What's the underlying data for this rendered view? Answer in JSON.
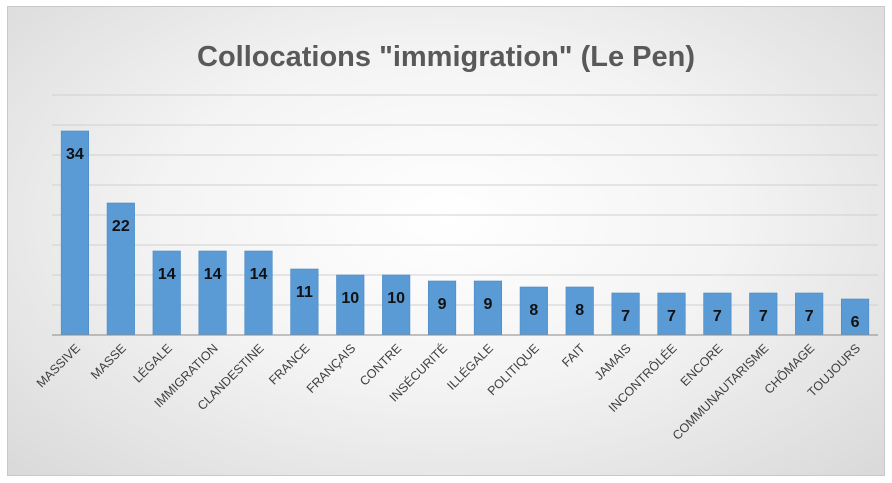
{
  "chart_data": {
    "type": "bar",
    "title": "Collocations \"immigration\" (Le Pen)",
    "categories": [
      "MASSIVE",
      "MASSE",
      "LÉGALE",
      "IMMIGRATION",
      "CLANDESTINE",
      "FRANCE",
      "FRANÇAIS",
      "CONTRE",
      "INSÉCURITÉ",
      "ILLÉGALE",
      "POLITIQUE",
      "FAIT",
      "JAMAIS",
      "INCONTRÔLÉE",
      "ENCORE",
      "COMMUNAUTARISME",
      "CHÔMAGE",
      "TOUJOURS"
    ],
    "values": [
      34,
      22,
      14,
      14,
      14,
      11,
      10,
      10,
      9,
      9,
      8,
      8,
      7,
      7,
      7,
      7,
      7,
      6
    ],
    "ylim": [
      0,
      40
    ],
    "grid": true,
    "data_labels": true,
    "xlabel": "",
    "ylabel": "",
    "colors": {
      "bar": "#5b9bd5",
      "bar_edge": "#4a89c4",
      "grid": "#d0d0d0",
      "axis": "#8a8a8a",
      "title": "#595959"
    }
  }
}
